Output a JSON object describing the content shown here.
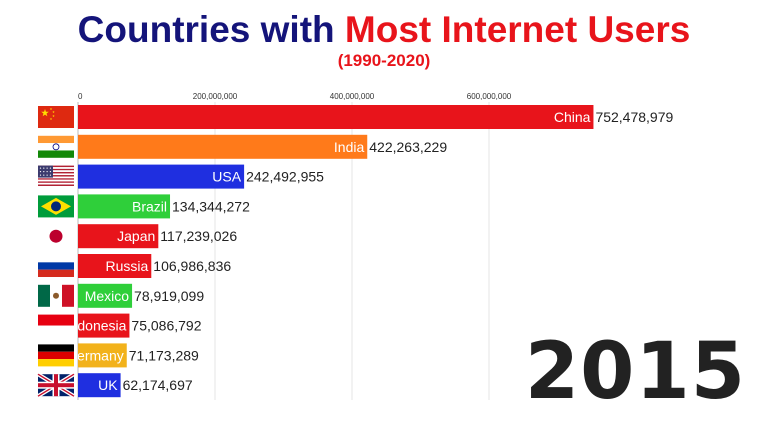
{
  "title": {
    "part1": "Countries with ",
    "part2": "Most Internet Users"
  },
  "subtitle": "(1990-2020)",
  "year": "2015",
  "chart_data": {
    "type": "bar",
    "orientation": "horizontal",
    "xlim": [
      0,
      800000000
    ],
    "ticks": [
      {
        "value": 0,
        "label": "0"
      },
      {
        "value": 200000000,
        "label": "200,000,000"
      },
      {
        "value": 400000000,
        "label": "400,000,000"
      },
      {
        "value": 600000000,
        "label": "600,000,000"
      }
    ],
    "grid": true,
    "categories": [
      "China",
      "India",
      "USA",
      "Brazil",
      "Japan",
      "Russia",
      "Mexico",
      "Indonesia",
      "Germany",
      "UK"
    ],
    "values": [
      752478979,
      422263229,
      242492955,
      134344272,
      117239026,
      106986836,
      78919099,
      75086792,
      71173289,
      62174697
    ],
    "value_labels": [
      "752,478,979",
      "422,263,229",
      "242,492,955",
      "134,344,272",
      "117,239,026",
      "106,986,836",
      "78,919,099",
      "75,086,792",
      "71,173,289",
      "62,174,697"
    ],
    "colors": [
      "#e8141b",
      "#ff7a1a",
      "#1f2fe0",
      "#2fcf3a",
      "#e8141b",
      "#e8141b",
      "#2fcf3a",
      "#e8141b",
      "#f2b21b",
      "#1f2fe0"
    ],
    "flags": [
      "china-flag",
      "india-flag",
      "usa-flag",
      "brazil-flag",
      "japan-flag",
      "russia-flag",
      "mexico-flag",
      "indonesia-flag",
      "germany-flag",
      "uk-flag"
    ]
  }
}
